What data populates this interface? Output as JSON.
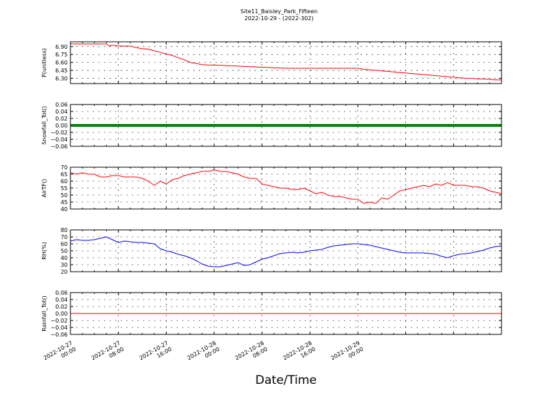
{
  "title_line1": "Site11_Baisley_Park_Fifteen",
  "title_line2": "2022-10-29 - (2022-302)",
  "xlabel": "Date/Time",
  "x_ticks": [
    {
      "line1": "2022-10-27",
      "line2": "00:00"
    },
    {
      "line1": "2022-10-27",
      "line2": "08:00"
    },
    {
      "line1": "2022-10-27",
      "line2": "16:00"
    },
    {
      "line1": "2022-10-28",
      "line2": "00:00"
    },
    {
      "line1": "2022-10-28",
      "line2": "08:00"
    },
    {
      "line1": "2022-10-28",
      "line2": "16:00"
    },
    {
      "line1": "2022-10-29",
      "line2": "00:00"
    }
  ],
  "chart_data": [
    {
      "type": "line",
      "ylabel": "P(unitless)",
      "ylim": [
        6.2,
        6.99
      ],
      "yticks": [
        "6.90",
        "6.75",
        "6.60",
        "6.45",
        "6.30"
      ],
      "ytick_values": [
        6.9,
        6.75,
        6.6,
        6.45,
        6.3
      ],
      "color": "#ff0000",
      "grid": true,
      "x_hours": [
        0,
        6,
        6.5,
        7,
        8,
        10,
        11,
        12,
        13,
        14,
        15,
        16,
        17,
        18,
        19,
        20,
        21,
        22,
        23,
        24,
        36,
        37,
        48,
        49,
        50,
        51,
        52,
        53,
        54,
        55,
        56,
        57,
        58,
        59,
        60,
        61,
        62,
        63,
        64,
        65,
        66,
        67,
        68,
        69,
        70,
        71,
        72
      ],
      "values": [
        6.95,
        6.95,
        6.91,
        6.93,
        6.91,
        6.91,
        6.88,
        6.86,
        6.85,
        6.82,
        6.79,
        6.76,
        6.73,
        6.69,
        6.65,
        6.6,
        6.58,
        6.56,
        6.55,
        6.55,
        6.49,
        6.49,
        6.49,
        6.47,
        6.46,
        6.45,
        6.44,
        6.43,
        6.42,
        6.41,
        6.4,
        6.39,
        6.38,
        6.37,
        6.36,
        6.35,
        6.34,
        6.33,
        6.32,
        6.31,
        6.3,
        6.3,
        6.29,
        6.29,
        6.28,
        6.27,
        6.27
      ]
    },
    {
      "type": "line",
      "ylabel": "Snowfall_Tot()",
      "ylim": [
        -0.06,
        0.06
      ],
      "yticks": [
        "0.06",
        "0.04",
        "0.02",
        "0.00",
        "−0.02",
        "−0.04",
        "−0.06"
      ],
      "ytick_values": [
        0.06,
        0.04,
        0.02,
        0.0,
        -0.02,
        -0.04,
        -0.06
      ],
      "color": "#008000",
      "line_width": 4,
      "grid": true,
      "x_hours": [
        0,
        72
      ],
      "values": [
        0,
        0
      ]
    },
    {
      "type": "line",
      "ylabel": "AirTF()",
      "ylim": [
        40,
        70
      ],
      "yticks": [
        "70",
        "65",
        "60",
        "55",
        "50",
        "45",
        "40"
      ],
      "ytick_values": [
        70,
        65,
        60,
        55,
        50,
        45,
        40
      ],
      "color": "#ff0000",
      "grid": true,
      "x_hours": [
        0,
        1,
        2,
        3,
        4,
        5,
        6,
        7,
        8,
        9,
        10,
        11,
        12,
        13,
        14,
        15,
        16,
        17,
        18,
        19,
        20,
        21,
        22,
        23,
        24,
        25,
        26,
        27,
        28,
        29,
        30,
        31,
        32,
        33,
        34,
        35,
        36,
        37,
        38,
        39,
        40,
        41,
        42,
        43,
        44,
        45,
        46,
        47,
        48,
        49,
        50,
        51,
        52,
        53,
        54,
        55,
        56,
        57,
        58,
        59,
        60,
        61,
        62,
        63,
        64,
        65,
        66,
        67,
        68,
        69,
        70,
        71,
        72
      ],
      "values": [
        66,
        65,
        66,
        65,
        65,
        63,
        63,
        64,
        64,
        63,
        63,
        63,
        62,
        60,
        57,
        60,
        58,
        61,
        62,
        64,
        65,
        66,
        67,
        67,
        68,
        67,
        67,
        66,
        65,
        63,
        62,
        62,
        58,
        57,
        56,
        55,
        55,
        54,
        54,
        55,
        53,
        51,
        52,
        50,
        49,
        49,
        48,
        47,
        47,
        44,
        45,
        44,
        48,
        47,
        50,
        53,
        54,
        55,
        56,
        57,
        56,
        58,
        57,
        59,
        57,
        57,
        57,
        56,
        56,
        55,
        53,
        52,
        51
      ]
    },
    {
      "type": "line",
      "ylabel": "RH(%)",
      "ylim": [
        20,
        80
      ],
      "yticks": [
        "80",
        "70",
        "60",
        "50",
        "40",
        "30",
        "20"
      ],
      "ytick_values": [
        80,
        70,
        60,
        50,
        40,
        30,
        20
      ],
      "color": "#0000ff",
      "grid": true,
      "x_hours": [
        0,
        1,
        2,
        3,
        4,
        5,
        6,
        7,
        8,
        9,
        10,
        11,
        12,
        13,
        14,
        15,
        16,
        17,
        18,
        19,
        20,
        21,
        22,
        23,
        24,
        25,
        26,
        27,
        28,
        29,
        30,
        31,
        32,
        33,
        34,
        35,
        36,
        37,
        38,
        39,
        40,
        41,
        42,
        43,
        44,
        45,
        46,
        47,
        48,
        49,
        50,
        51,
        52,
        53,
        54,
        55,
        56,
        57,
        58,
        59,
        60,
        61,
        62,
        63,
        64,
        65,
        66,
        67,
        68,
        69,
        70,
        71,
        72
      ],
      "values": [
        64,
        66,
        65,
        65,
        66,
        68,
        70,
        66,
        62,
        64,
        63,
        62,
        62,
        61,
        60,
        53,
        50,
        48,
        45,
        43,
        40,
        36,
        31,
        28,
        27,
        27,
        29,
        31,
        33,
        29,
        30,
        34,
        38,
        40,
        43,
        46,
        47,
        48,
        47,
        48,
        50,
        51,
        52,
        55,
        57,
        58,
        59,
        60,
        60,
        59,
        58,
        56,
        54,
        52,
        50,
        48,
        47,
        47,
        47,
        47,
        46,
        45,
        42,
        40,
        43,
        45,
        46,
        47,
        49,
        51,
        54,
        56,
        57
      ]
    },
    {
      "type": "line",
      "ylabel": "Rainfall_Tot()",
      "ylim": [
        -0.06,
        0.06
      ],
      "yticks": [
        "0.06",
        "0.04",
        "0.02",
        "0.00",
        "−0.02",
        "−0.04",
        "−0.06"
      ],
      "ytick_values": [
        0.06,
        0.04,
        0.02,
        0.0,
        -0.02,
        -0.04,
        -0.06
      ],
      "color": "#ff0000",
      "grid": true,
      "x_hours": [
        0,
        72
      ],
      "values": [
        0,
        0
      ]
    }
  ]
}
